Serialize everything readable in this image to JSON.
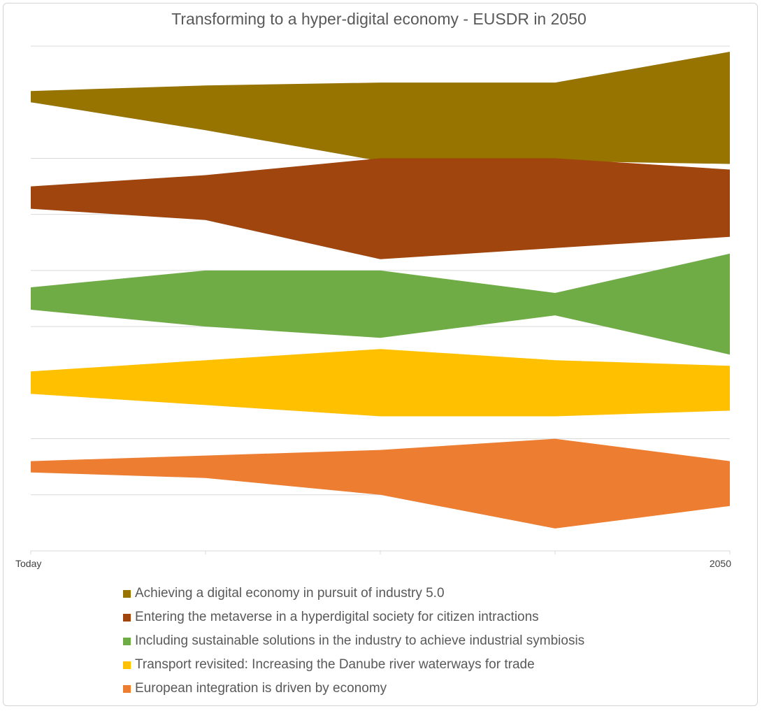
{
  "chart_data": {
    "type": "area",
    "subtype": "stream / band chart",
    "title": "Transforming to a hyper-digital economy - EUSDR in 2050",
    "x_ticks": [
      "Today",
      "",
      "",
      "",
      "2050"
    ],
    "grid": "horizontal",
    "legend_position": "bottom",
    "series": [
      {
        "name": "Achieving a digital economy in pursuit of industry 5.0",
        "color": "#977300",
        "center": [
          8.1,
          7.9,
          7.65,
          7.65,
          7.9
        ],
        "width": [
          0.2,
          0.8,
          1.4,
          1.4,
          2.0
        ]
      },
      {
        "name": "Entering the metaverse in a hyperdigital society for citizen intractions",
        "color": "#9f450d",
        "center": [
          6.3,
          6.3,
          6.1,
          6.2,
          6.2
        ],
        "width": [
          0.4,
          0.8,
          1.8,
          1.6,
          1.2
        ]
      },
      {
        "name": "Including sustainable solutions in the industry to achieve industrial symbiosis",
        "color": "#6fac46",
        "center": [
          4.5,
          4.5,
          4.4,
          4.4,
          4.4
        ],
        "width": [
          0.4,
          1.0,
          1.2,
          0.4,
          1.8
        ]
      },
      {
        "name": "Transport revisited: Increasing the Danube river waterways for trade",
        "color": "#ffc000",
        "center": [
          3.0,
          3.0,
          3.0,
          2.9,
          2.9
        ],
        "width": [
          0.4,
          0.8,
          1.2,
          1.0,
          0.8
        ]
      },
      {
        "name": "European integration is driven by economy",
        "color": "#ed7d31",
        "center": [
          1.5,
          1.5,
          1.4,
          1.2,
          1.2
        ],
        "width": [
          0.2,
          0.4,
          0.8,
          1.6,
          0.8
        ]
      }
    ],
    "ylim": [
      0,
      9
    ]
  }
}
